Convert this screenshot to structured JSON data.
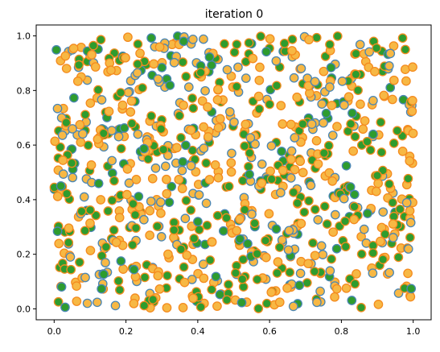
{
  "chart_data": {
    "type": "scatter",
    "title": "iteration 0",
    "xlabel": "",
    "ylabel": "",
    "xlim": [
      -0.05,
      1.05
    ],
    "ylim": [
      -0.04,
      1.04
    ],
    "xticks": [
      0.0,
      0.2,
      0.4,
      0.6,
      0.8,
      1.0
    ],
    "yticks": [
      0.0,
      0.2,
      0.4,
      0.6,
      0.8,
      1.0
    ],
    "grid": false,
    "legend": "none",
    "point_count": 900,
    "distribution": "uniform random on [0,1] x [0,1]",
    "styles": [
      {
        "face": "#f7b844",
        "edge": "#4b86b4"
      },
      {
        "face": "#f7b844",
        "edge": "#f48b1f"
      },
      {
        "face": "#2e9c2e",
        "edge": "#f48b1f"
      },
      {
        "face": "#2e9c2e",
        "edge": "#4b86b4"
      }
    ],
    "style_weights": [
      0.22,
      0.33,
      0.33,
      0.12
    ]
  },
  "colors": {
    "axis": "#000000",
    "background": "#ffffff"
  }
}
